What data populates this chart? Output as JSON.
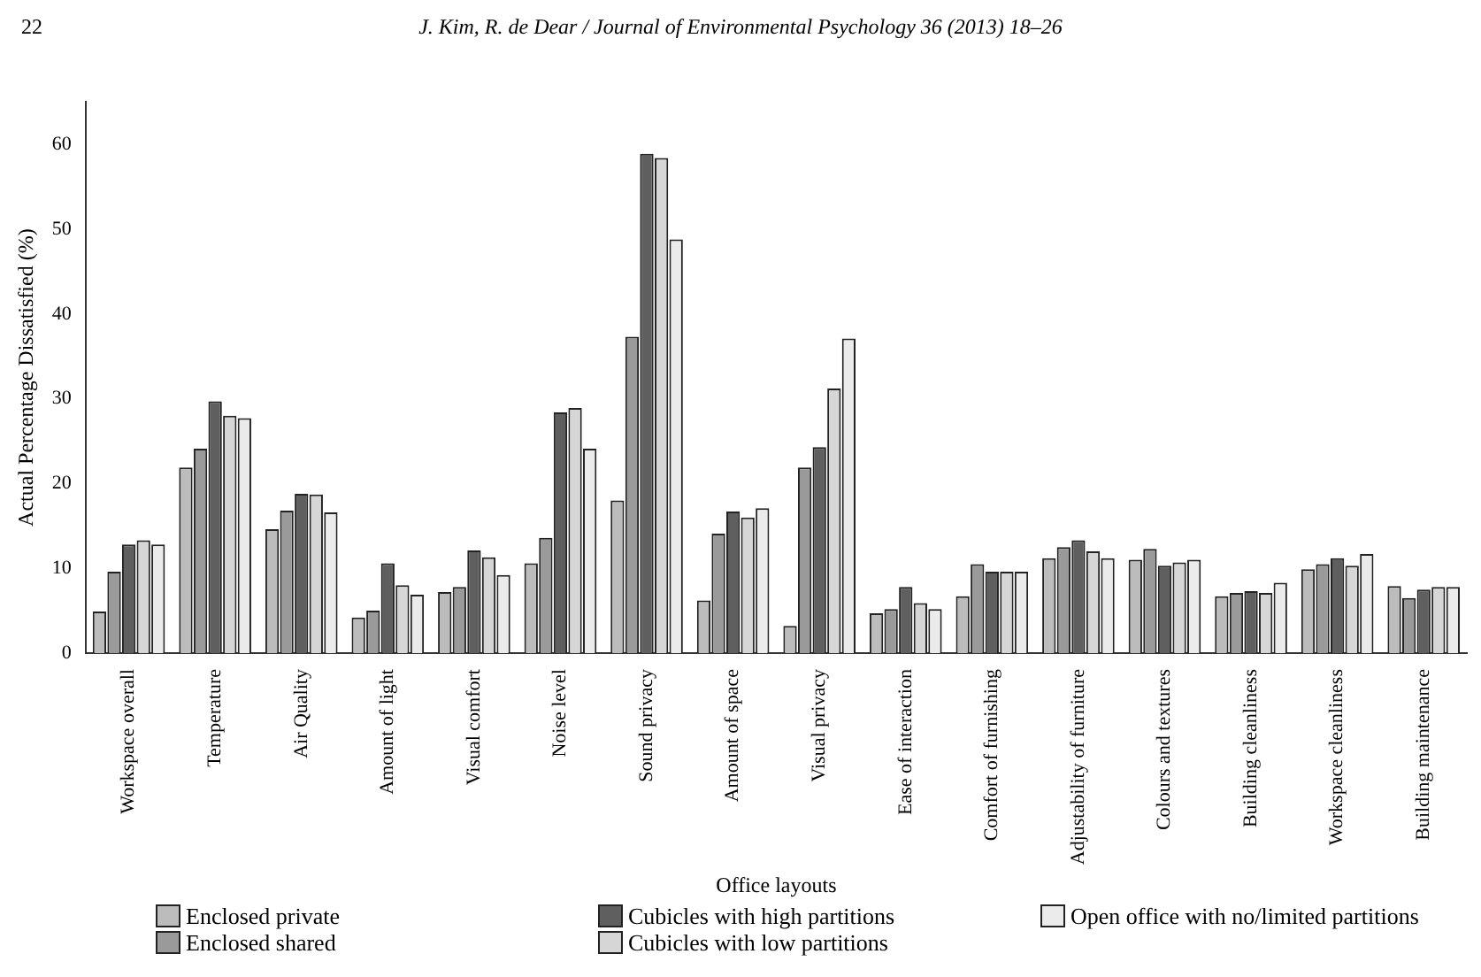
{
  "chart_data": {
    "type": "bar",
    "ylabel": "Actual Percentage Dissatisfied (%)",
    "xlabel": "Office layouts",
    "annotations": [
      "22",
      "J. Kim, R. de Dear / Journal of Environmental Psychology 36 (2013) 18–26"
    ],
    "categories": [
      "Workspace overall",
      "Temperature",
      "Air Quality",
      "Amount of light",
      "Visual comfort",
      "Noise level",
      "Sound privacy",
      "Amount of space",
      "Visual privacy",
      "Ease of interaction",
      "Comfort of furnishing",
      "Adjustability of furniture",
      "Colours and textures",
      "Building cleanliness",
      "Workspace cleanliness",
      "Building maintenance"
    ],
    "series": [
      {
        "name": "Enclosed private",
        "color": "#bcbcbc",
        "values": [
          4.9,
          21.9,
          14.6,
          4.2,
          7.2,
          10.6,
          18.0,
          6.2,
          3.2,
          4.7,
          6.7,
          11.2,
          11.0,
          6.7,
          9.9,
          7.9
        ]
      },
      {
        "name": "Enclosed shared",
        "color": "#9a9a9a",
        "values": [
          9.6,
          24.1,
          16.8,
          5.0,
          7.8,
          13.6,
          37.3,
          14.1,
          21.9,
          5.2,
          10.5,
          12.5,
          12.3,
          7.1,
          10.5,
          6.5
        ]
      },
      {
        "name": "Cubicles with high partitions",
        "color": "#5f5f5f",
        "values": [
          12.8,
          29.7,
          18.8,
          10.6,
          12.1,
          28.4,
          58.9,
          16.7,
          24.3,
          7.8,
          9.6,
          13.3,
          10.3,
          7.3,
          11.2,
          7.5
        ]
      },
      {
        "name": "Cubicles with low partitions",
        "color": "#d6d6d6",
        "values": [
          13.3,
          28.0,
          18.7,
          8.0,
          11.3,
          28.9,
          58.4,
          16.0,
          31.2,
          5.9,
          9.6,
          12.0,
          10.7,
          7.1,
          10.3,
          7.8
        ]
      },
      {
        "name": "Open office with no/limited partitions",
        "color": "#ebebeb",
        "values": [
          12.8,
          27.7,
          16.6,
          6.9,
          9.2,
          24.1,
          48.8,
          17.1,
          37.1,
          5.2,
          9.6,
          11.2,
          11.0,
          8.3,
          11.7,
          7.8
        ]
      }
    ],
    "ylim": [
      0,
      65
    ],
    "yticks": [
      0,
      10,
      20,
      30,
      40,
      50,
      60
    ],
    "grid": false,
    "legend": "bottom"
  }
}
